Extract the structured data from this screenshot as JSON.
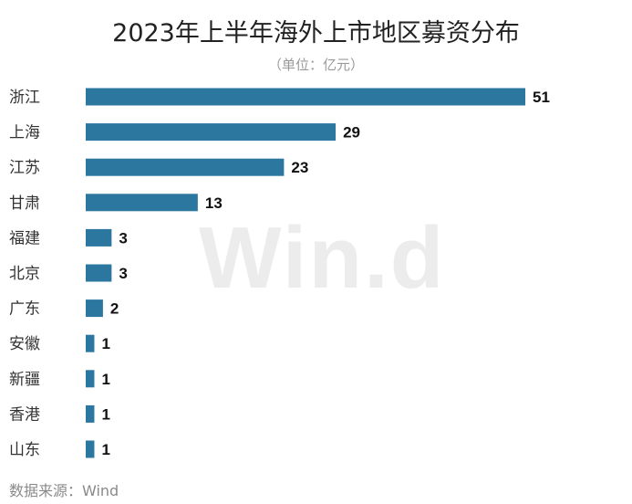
{
  "chart_data": {
    "type": "bar",
    "orientation": "horizontal",
    "title": "2023年上半年海外上市地区募资分布",
    "subtitle": "（单位：亿元）",
    "categories": [
      "浙江",
      "上海",
      "江苏",
      "甘肃",
      "福建",
      "北京",
      "广东",
      "安徽",
      "新疆",
      "香港",
      "山东"
    ],
    "values": [
      51,
      29,
      23,
      13,
      3,
      3,
      2,
      1,
      1,
      1,
      1
    ],
    "value_labels": [
      "51",
      "29",
      "23",
      "13",
      "3",
      "3",
      "2",
      "1",
      "1",
      "1",
      "1"
    ],
    "xlim": [
      0,
      51
    ],
    "grid": false,
    "bar_color": "#2b77a0",
    "watermark": "Win.d",
    "source": "数据来源：Wind"
  }
}
